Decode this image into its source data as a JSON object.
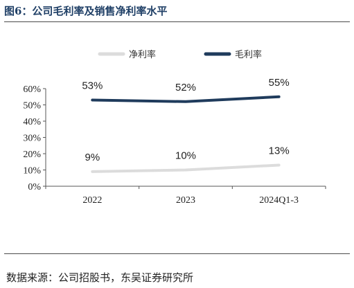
{
  "header": {
    "title": "图6：公司毛利率及销售净利率水平"
  },
  "footer": {
    "source": "数据来源：公司招股书，东吴证券研究所"
  },
  "colors": {
    "net": "#dcdcdc",
    "gross": "#1f3b5c"
  },
  "chart_data": {
    "type": "line",
    "categories": [
      "2022",
      "2023",
      "2024Q1-3"
    ],
    "series": [
      {
        "name": "净利率",
        "values": [
          9,
          10,
          13
        ],
        "labels": [
          "9%",
          "10%",
          "13%"
        ]
      },
      {
        "name": "毛利率",
        "values": [
          53,
          52,
          55
        ],
        "labels": [
          "53%",
          "52%",
          "55%"
        ]
      }
    ],
    "ylim": [
      0,
      60
    ],
    "yticks": [
      "0%",
      "10%",
      "20%",
      "30%",
      "40%",
      "50%",
      "60%"
    ],
    "legend": "top-center",
    "grid": false
  }
}
